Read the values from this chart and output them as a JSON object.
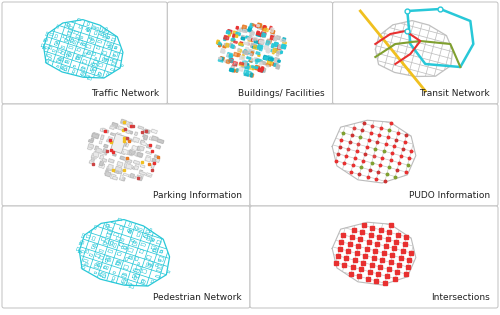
{
  "background_color": "#ffffff",
  "panel_border": "#cccccc",
  "cyan": "#28c8d8",
  "red": "#e83030",
  "yellow": "#f0c020",
  "green": "#80a030",
  "orange": "#e87820",
  "gray": "#aaaaaa",
  "lightgray": "#d8d8d8",
  "darkgray": "#666666",
  "label_fontsize": 6.5,
  "panels": [
    {
      "label": "Traffic Network",
      "row": 0,
      "col": 0
    },
    {
      "label": "Buildings/ Facilities",
      "row": 0,
      "col": 1
    },
    {
      "label": "Transit Network",
      "row": 0,
      "col": 2
    },
    {
      "label": "Parking Information",
      "row": 1,
      "col": 0
    },
    {
      "label": "PUDO Information",
      "row": 1,
      "col": 1
    },
    {
      "label": "Pedestrian Network",
      "row": 2,
      "col": 0
    },
    {
      "label": "Intersections",
      "row": 2,
      "col": 1
    }
  ]
}
